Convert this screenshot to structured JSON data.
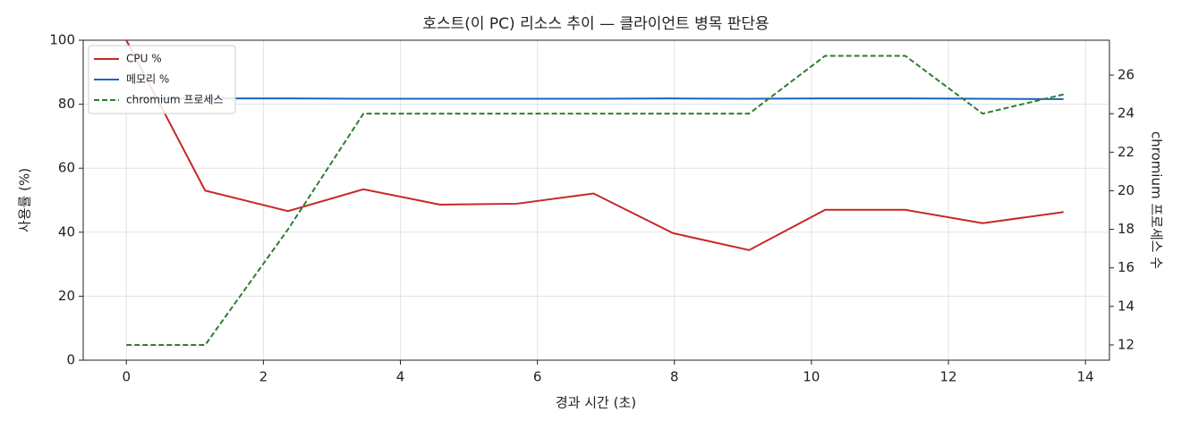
{
  "chart_data": {
    "type": "line",
    "title": "호스트(이 PC) 리소스 추이 — 클라이언트 병목 판단용",
    "xlabel": "경과 시간 (초)",
    "ylabel": "사용률 (%)",
    "y2label": "chromium 프로세스 수",
    "x": [
      0,
      1.15,
      2.36,
      3.46,
      4.58,
      5.7,
      6.82,
      7.98,
      9.09,
      10.2,
      11.37,
      12.5,
      13.68
    ],
    "series": [
      {
        "name": "CPU %",
        "color": "#c62828",
        "dash": false,
        "values": [
          100,
          53,
          46.6,
          53.4,
          48.6,
          48.9,
          52.1,
          39.7,
          34.4,
          47,
          47,
          42.8,
          46.3
        ]
      },
      {
        "name": "메모리 %",
        "color": "#1565c0",
        "dash": false,
        "values": [
          81.8,
          81.8,
          81.8,
          81.7,
          81.7,
          81.7,
          81.7,
          81.8,
          81.7,
          81.8,
          81.8,
          81.7,
          81.6
        ]
      },
      {
        "name": "chromium 프로세스",
        "color": "#2e7d32",
        "dash": true,
        "axis": "y2",
        "values": [
          12,
          12,
          18,
          24,
          24,
          24,
          24,
          24,
          24,
          27,
          27,
          24,
          25
        ]
      }
    ],
    "xlim": [
      -0.63,
      14.35
    ],
    "xticks": [
      0,
      2,
      4,
      6,
      8,
      10,
      12,
      14
    ],
    "ylim": [
      0,
      100
    ],
    "yticks": [
      0,
      20,
      40,
      60,
      80,
      100
    ],
    "y2lim": [
      11.21,
      27.81
    ],
    "y2ticks": [
      12,
      14,
      16,
      18,
      20,
      22,
      24,
      26
    ],
    "grid": true,
    "legend": "upper-left"
  }
}
